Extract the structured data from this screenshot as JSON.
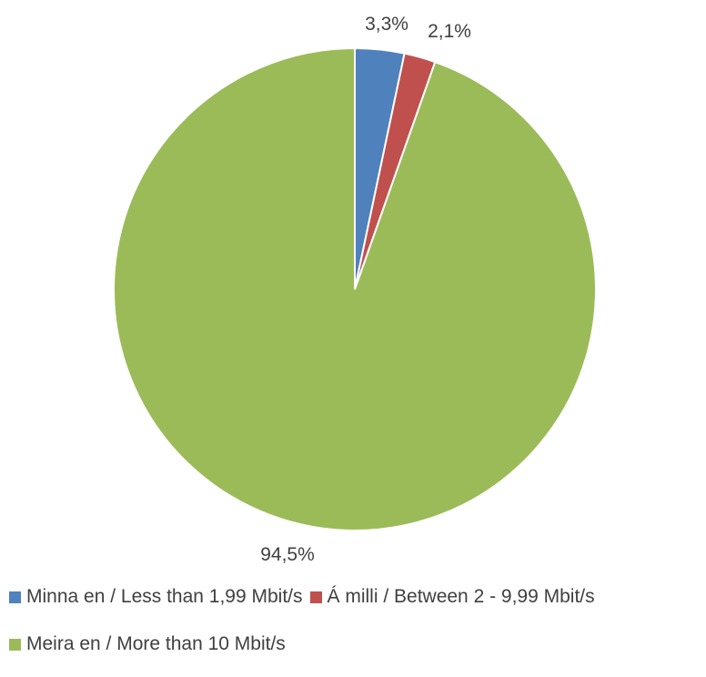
{
  "chart_data": {
    "type": "pie",
    "title": "",
    "legend_position": "bottom",
    "slices": [
      {
        "label": "Minna en / Less than 1,99 Mbit/s",
        "value": 3.3,
        "display": "3,3%",
        "color": "#4f81bd"
      },
      {
        "label": "Á milli / Between 2 - 9,99 Mbit/s",
        "value": 2.1,
        "display": "2,1%",
        "color": "#c0504d"
      },
      {
        "label": "Meira en / More than 10 Mbit/s",
        "value": 94.5,
        "display": "94,5%",
        "color": "#9bbb59"
      }
    ]
  }
}
